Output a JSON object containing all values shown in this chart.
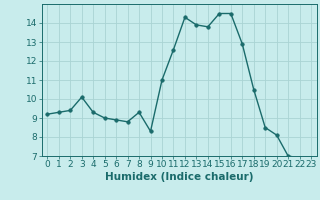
{
  "x": [
    0,
    1,
    2,
    3,
    4,
    5,
    6,
    7,
    8,
    9,
    10,
    11,
    12,
    13,
    14,
    15,
    16,
    17,
    18,
    19,
    20,
    21,
    22,
    23
  ],
  "y": [
    9.2,
    9.3,
    9.4,
    10.1,
    9.3,
    9.0,
    8.9,
    8.8,
    9.3,
    8.3,
    11.0,
    12.6,
    14.3,
    13.9,
    13.8,
    14.5,
    14.5,
    12.9,
    10.5,
    8.5,
    8.1,
    7.0,
    6.9,
    6.9
  ],
  "line_color": "#1a6b6b",
  "marker_color": "#1a6b6b",
  "bg_color": "#c8ecec",
  "grid_color": "#aad4d4",
  "xlabel": "Humidex (Indice chaleur)",
  "xlim": [
    -0.5,
    23.5
  ],
  "ylim": [
    7,
    15
  ],
  "yticks": [
    7,
    8,
    9,
    10,
    11,
    12,
    13,
    14
  ],
  "xticks": [
    0,
    1,
    2,
    3,
    4,
    5,
    6,
    7,
    8,
    9,
    10,
    11,
    12,
    13,
    14,
    15,
    16,
    17,
    18,
    19,
    20,
    21,
    22,
    23
  ],
  "tick_fontsize": 6.5,
  "xlabel_fontsize": 7.5,
  "linewidth": 1.0,
  "markersize": 2.5
}
